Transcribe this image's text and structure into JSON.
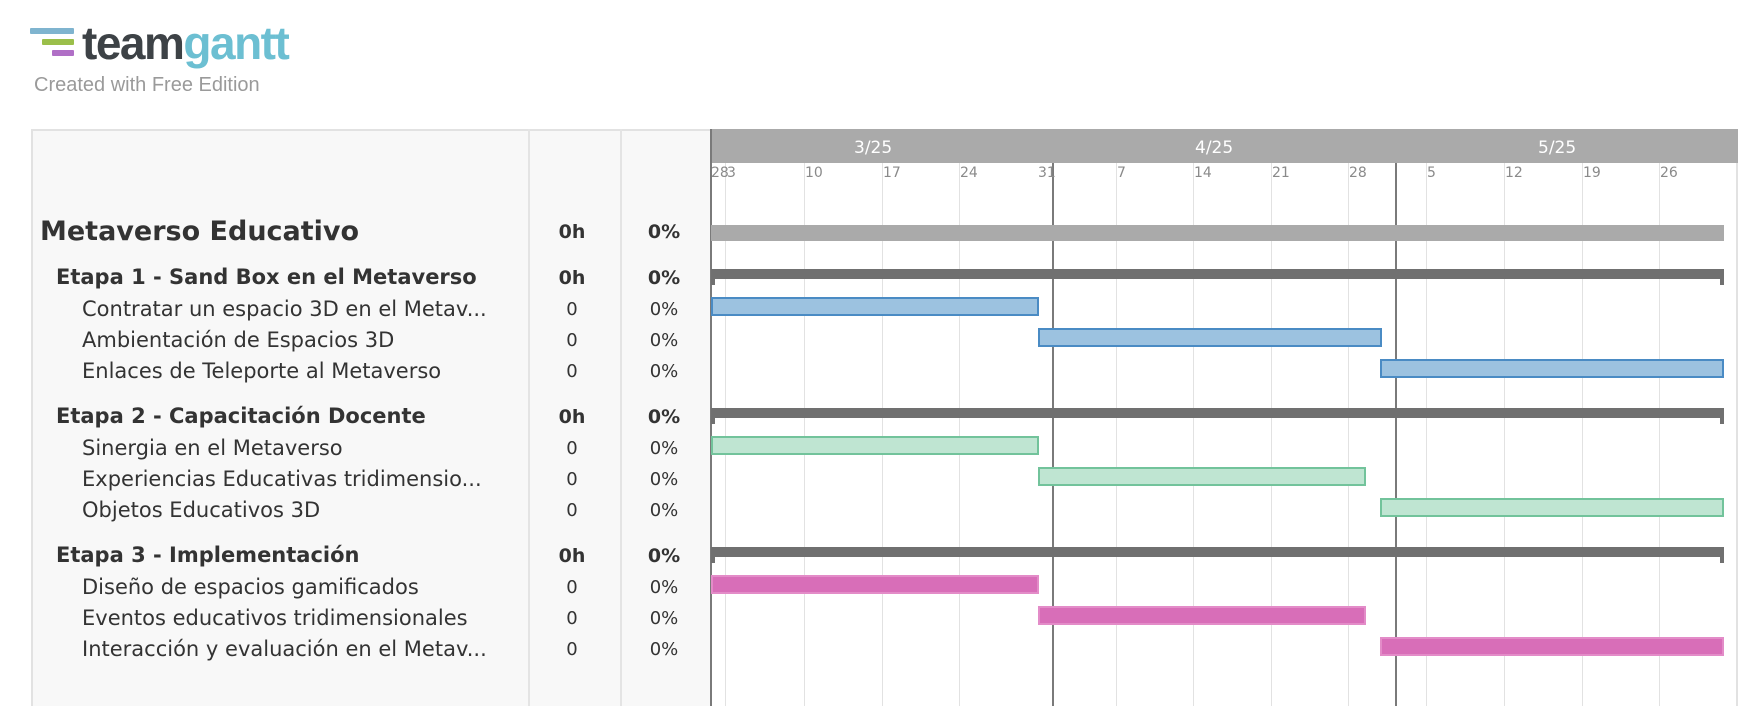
{
  "logo": {
    "word_team": "team",
    "word_gantt": "gantt",
    "tagline": "Created with Free Edition",
    "colors": {
      "bar1": "#7fb4cf",
      "bar2": "#9bbf4a",
      "bar3": "#b06fc6"
    }
  },
  "timeline": {
    "months": [
      "3/25",
      "4/25",
      "5/25"
    ],
    "weeks": [
      "28",
      "3",
      "10",
      "17",
      "24",
      "31",
      "7",
      "14",
      "21",
      "28",
      "5",
      "12",
      "19",
      "26"
    ]
  },
  "colors": {
    "header": "#aaaaaa",
    "group_bar": "#707070",
    "blue_fill": "#9cc2e0",
    "green_fill": "#bfe5d2",
    "pink_fill": "#d86eb8"
  },
  "project": {
    "name": "Metaverso Educativo",
    "hours": "0h",
    "percent": "0%"
  },
  "groups": [
    {
      "name": "Etapa 1 - Sand Box en el Metaverso",
      "hours": "0h",
      "percent": "0%",
      "tasks": [
        {
          "name": "Contratar un espacio 3D en el Metav...",
          "hours": "0",
          "percent": "0%"
        },
        {
          "name": "Ambientación de Espacios 3D",
          "hours": "0",
          "percent": "0%"
        },
        {
          "name": "Enlaces de Teleporte al Metaverso",
          "hours": "0",
          "percent": "0%"
        }
      ]
    },
    {
      "name": "Etapa 2 - Capacitación Docente",
      "hours": "0h",
      "percent": "0%",
      "tasks": [
        {
          "name": "Sinergia en el Metaverso",
          "hours": "0",
          "percent": "0%"
        },
        {
          "name": "Experiencias Educativas tridimensio...",
          "hours": "0",
          "percent": "0%"
        },
        {
          "name": "Objetos Educativos 3D",
          "hours": "0",
          "percent": "0%"
        }
      ]
    },
    {
      "name": "Etapa 3 - Implementación",
      "hours": "0h",
      "percent": "0%",
      "tasks": [
        {
          "name": "Diseño de espacios gamificados",
          "hours": "0",
          "percent": "0%"
        },
        {
          "name": "Eventos educativos tridimensionales",
          "hours": "0",
          "percent": "0%"
        },
        {
          "name": "Interacción y evaluación en el Metav...",
          "hours": "0",
          "percent": "0%"
        }
      ]
    }
  ]
}
